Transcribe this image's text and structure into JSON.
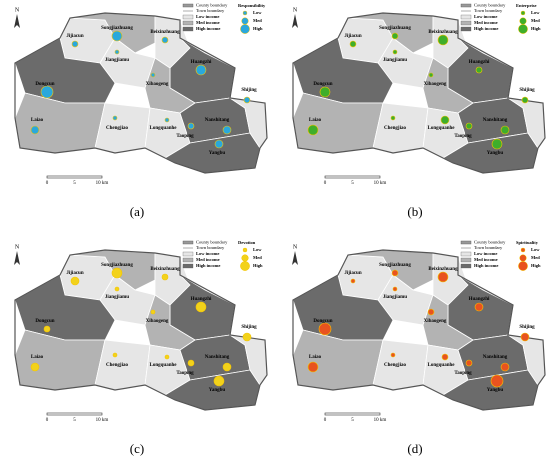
{
  "north": "N",
  "scale": {
    "labels": [
      "0",
      "5",
      "10 km"
    ]
  },
  "legend": {
    "county_boundary": "County boundary",
    "town_boundary": "Town boundary",
    "income": [
      "Low income",
      "Med income",
      "High income"
    ],
    "levels": [
      "Low",
      "Med",
      "High"
    ]
  },
  "towns": [
    "Jijiacun",
    "Songjiazhuang",
    "Beixinzhuang",
    "Jiangjiamu",
    "Huangzhi",
    "Dongcun",
    "Xibaogeng",
    "Laiao",
    "Chengjiao",
    "Longquanhe",
    "Nanshitang",
    "Taoping",
    "Yangbu",
    "Shijing"
  ],
  "panels": [
    {
      "label": "(a)",
      "legend_title": "Responsibility",
      "color": "#2aa8dc"
    },
    {
      "label": "(b)",
      "legend_title": "Enterprise",
      "color": "#3fae2a"
    },
    {
      "label": "(c)",
      "legend_title": "Devotion",
      "color": "#f2d21b"
    },
    {
      "label": "(d)",
      "legend_title": "Spirituality",
      "color": "#e8531f"
    }
  ]
}
